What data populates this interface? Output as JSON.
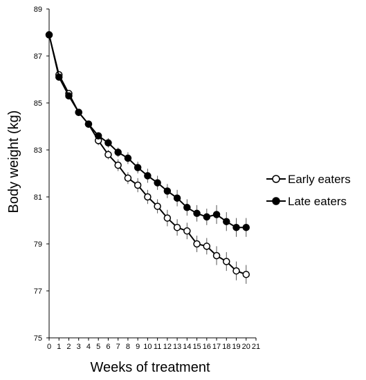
{
  "chart_data": {
    "type": "line",
    "title": "",
    "xlabel": "Weeks of treatment",
    "ylabel": "Body weight (kg)",
    "xlim": [
      0,
      21
    ],
    "ylim": [
      75,
      89
    ],
    "x_ticks": [
      0,
      1,
      2,
      3,
      4,
      5,
      6,
      7,
      8,
      9,
      10,
      11,
      12,
      13,
      14,
      15,
      16,
      17,
      18,
      19,
      20,
      21
    ],
    "y_ticks": [
      75,
      77,
      79,
      81,
      83,
      85,
      87,
      89
    ],
    "grid": false,
    "legend_position": "right",
    "x": [
      0,
      1,
      2,
      3,
      4,
      5,
      6,
      7,
      8,
      9,
      10,
      11,
      12,
      13,
      14,
      15,
      16,
      17,
      18,
      19,
      20
    ],
    "series": [
      {
        "name": "Early eaters",
        "marker": "open-circle",
        "color": "#000000",
        "values": [
          87.9,
          86.2,
          85.4,
          84.6,
          84.1,
          83.4,
          82.8,
          82.35,
          81.8,
          81.5,
          81.0,
          80.6,
          80.1,
          79.7,
          79.55,
          79.0,
          78.9,
          78.5,
          78.25,
          77.85,
          77.7
        ],
        "error": [
          0,
          0.1,
          0.1,
          0.1,
          0.15,
          0.2,
          0.2,
          0.25,
          0.25,
          0.3,
          0.3,
          0.3,
          0.35,
          0.35,
          0.35,
          0.35,
          0.35,
          0.4,
          0.4,
          0.4,
          0.4
        ]
      },
      {
        "name": "Late eaters",
        "marker": "filled-circle",
        "color": "#000000",
        "values": [
          87.9,
          86.1,
          85.3,
          84.6,
          84.1,
          83.6,
          83.3,
          82.9,
          82.65,
          82.25,
          81.9,
          81.6,
          81.25,
          80.95,
          80.55,
          80.3,
          80.15,
          80.25,
          79.95,
          79.7,
          79.7
        ],
        "error": [
          0,
          0.1,
          0.1,
          0.1,
          0.15,
          0.15,
          0.2,
          0.2,
          0.25,
          0.25,
          0.3,
          0.3,
          0.3,
          0.35,
          0.35,
          0.35,
          0.35,
          0.4,
          0.4,
          0.4,
          0.4
        ]
      }
    ]
  }
}
